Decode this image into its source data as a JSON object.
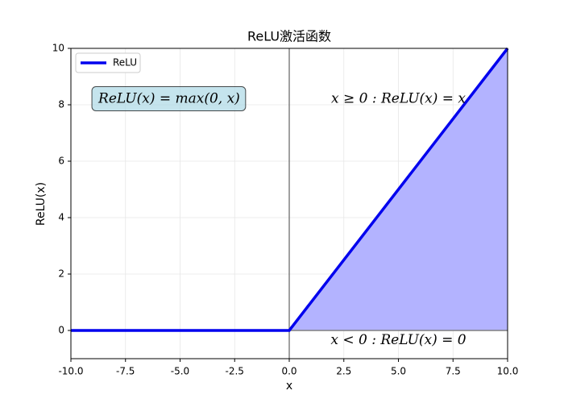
{
  "chart_data": {
    "type": "line",
    "title": "ReLU激活函数",
    "xlabel": "x",
    "ylabel": "ReLU(x)",
    "x": [
      -10,
      0,
      10
    ],
    "series": [
      {
        "name": "ReLU",
        "color": "#0000ee",
        "fill_color": "#b3b3ff",
        "values": [
          0,
          0,
          10
        ]
      }
    ],
    "xlim": [
      -10,
      10
    ],
    "xticks": [
      {
        "value": -10,
        "label": "-10.0"
      },
      -7.5,
      {
        "value": -5,
        "label": "-5.0"
      },
      -2.5,
      {
        "value": 0,
        "label": "0.0"
      },
      2.5,
      {
        "value": 5,
        "label": "5.0"
      },
      7.5,
      {
        "value": 10,
        "label": "10.0"
      }
    ],
    "ylim": [
      -1,
      10
    ],
    "yticks": [
      0,
      2,
      4,
      6,
      8,
      10
    ],
    "hlines": [
      0
    ],
    "vlines": [
      0
    ],
    "grid": true,
    "legend": "upper left",
    "annotations": [
      {
        "text": "ReLU(x) = max(0, x)",
        "color": "#000000",
        "box": true
      },
      {
        "text": "x ≥ 0 : ReLU(x) = x",
        "color": "#008000"
      },
      {
        "text": "x < 0 : ReLU(x) = 0",
        "color": "#ff0000"
      }
    ]
  }
}
